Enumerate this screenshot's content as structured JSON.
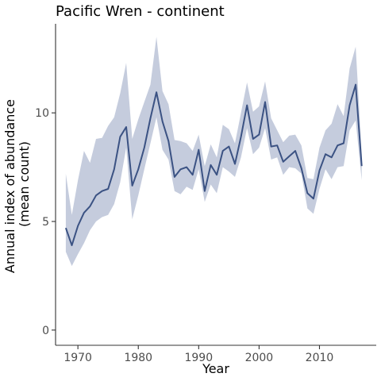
{
  "chart_data": {
    "type": "line",
    "title": "Pacific Wren - continent",
    "xlabel": "Year",
    "ylabel_line1": "Annual index of abundance",
    "ylabel_line2": "(mean count)",
    "xlim": [
      1966.3,
      2019.4
    ],
    "ylim": [
      -0.7,
      14.1
    ],
    "x_ticks": [
      1970,
      1980,
      1990,
      2000,
      2010
    ],
    "y_ticks": [
      0,
      5,
      10
    ],
    "grid": false,
    "colors": {
      "line": "#3b5283",
      "band": "#c5ccdd",
      "axis": "#333333",
      "tick_text": "#4d4d4d"
    },
    "series": [
      {
        "x": [
          1968,
          1969,
          1970,
          1971,
          1972,
          1973,
          1974,
          1975,
          1976,
          1977,
          1978,
          1979,
          1980,
          1981,
          1982,
          1983,
          1984,
          1985,
          1986,
          1987,
          1988,
          1989,
          1990,
          1991,
          1992,
          1993,
          1994,
          1995,
          1996,
          1997,
          1998,
          1999,
          2000,
          2001,
          2002,
          2003,
          2004,
          2005,
          2006,
          2007,
          2008,
          2009,
          2010,
          2011,
          2012,
          2013,
          2014,
          2015,
          2016,
          2017
        ],
        "values": [
          4.7,
          3.9,
          4.8,
          5.4,
          5.7,
          6.2,
          6.4,
          6.5,
          7.4,
          8.9,
          9.35,
          6.65,
          7.4,
          8.4,
          9.75,
          10.95,
          9.6,
          8.7,
          7.05,
          7.4,
          7.5,
          7.15,
          8.3,
          6.4,
          7.6,
          7.15,
          8.25,
          8.45,
          7.65,
          8.9,
          10.35,
          8.8,
          9.0,
          10.5,
          8.45,
          8.5,
          7.75,
          8.0,
          8.25,
          7.45,
          6.3,
          6.05,
          7.35,
          8.1,
          7.95,
          8.5,
          8.6,
          10.35,
          11.3,
          7.55
        ],
        "lower": [
          3.6,
          2.95,
          3.5,
          4.0,
          4.6,
          5.0,
          5.2,
          5.3,
          5.8,
          6.8,
          8.4,
          5.1,
          6.2,
          7.4,
          8.6,
          9.8,
          8.3,
          7.85,
          6.4,
          6.25,
          6.6,
          6.45,
          7.4,
          5.9,
          6.7,
          6.3,
          7.5,
          7.3,
          7.05,
          7.95,
          9.3,
          8.1,
          8.4,
          9.3,
          7.85,
          7.95,
          7.15,
          7.5,
          7.45,
          7.2,
          5.6,
          5.35,
          6.5,
          7.4,
          6.95,
          7.5,
          7.55,
          9.2,
          9.65,
          6.9
        ],
        "upper": [
          7.2,
          5.3,
          6.9,
          8.25,
          7.7,
          8.8,
          8.85,
          9.4,
          9.8,
          10.9,
          12.3,
          8.8,
          9.7,
          10.5,
          11.3,
          13.5,
          11.0,
          10.4,
          8.75,
          8.7,
          8.6,
          8.25,
          9.0,
          7.55,
          8.55,
          7.95,
          9.45,
          9.25,
          8.6,
          10.0,
          11.4,
          10.05,
          10.3,
          11.45,
          9.75,
          9.2,
          8.65,
          8.95,
          9.0,
          8.5,
          7.0,
          6.95,
          8.4,
          9.2,
          9.5,
          10.4,
          9.85,
          12.05,
          13.05,
          8.1
        ]
      }
    ]
  }
}
